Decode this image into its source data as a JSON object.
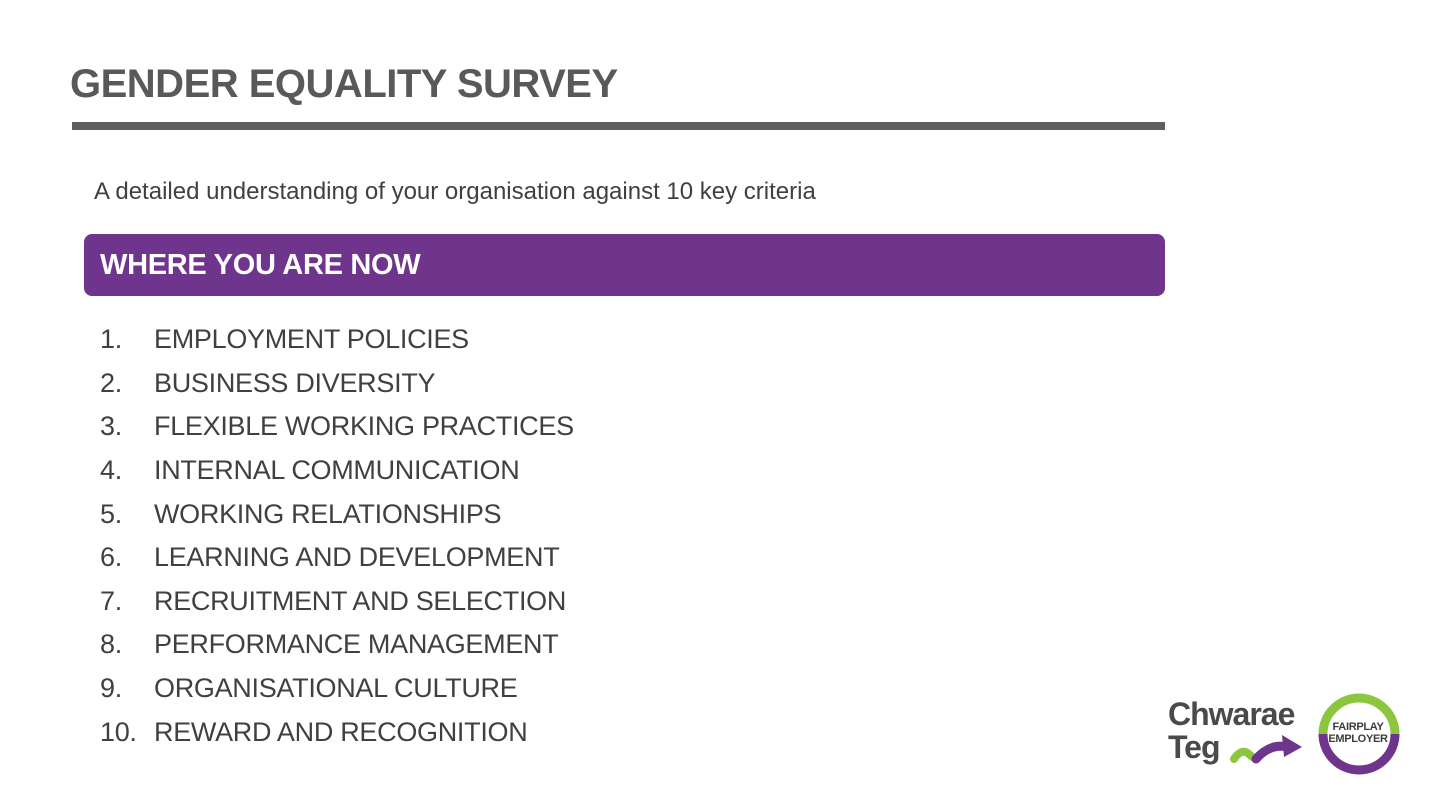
{
  "slide": {
    "title": "GENDER EQUALITY SURVEY",
    "subtitle": "A detailed understanding of your organisation against 10 key criteria",
    "banner": "WHERE YOU ARE NOW",
    "criteria": [
      {
        "num": "1.",
        "label": "EMPLOYMENT POLICIES"
      },
      {
        "num": "2.",
        "label": "BUSINESS DIVERSITY"
      },
      {
        "num": "3.",
        "label": "FLEXIBLE WORKING PRACTICES"
      },
      {
        "num": "4.",
        "label": "INTERNAL COMMUNICATION"
      },
      {
        "num": "5.",
        "label": "WORKING RELATIONSHIPS"
      },
      {
        "num": "6.",
        "label": "LEARNING AND DEVELOPMENT"
      },
      {
        "num": "7.",
        "label": "RECRUITMENT AND SELECTION"
      },
      {
        "num": "8.",
        "label": "PERFORMANCE MANAGEMENT"
      },
      {
        "num": "9.",
        "label": "ORGANISATIONAL CULTURE"
      },
      {
        "num": "10.",
        "label": "REWARD AND RECOGNITION"
      }
    ]
  },
  "logo": {
    "line1": "Chwarae",
    "line2": "Teg",
    "badge_line1": "FAIRPLAY",
    "badge_line2": "EMPLOYER",
    "icons": [
      "swoosh-arrow-icon",
      "fairplay-badge-icon"
    ]
  },
  "colors": {
    "banner": "#6f348c",
    "title": "#595959",
    "rule": "#5f5f5f",
    "logo_green": "#8cc63f",
    "logo_purple": "#6f348c"
  }
}
